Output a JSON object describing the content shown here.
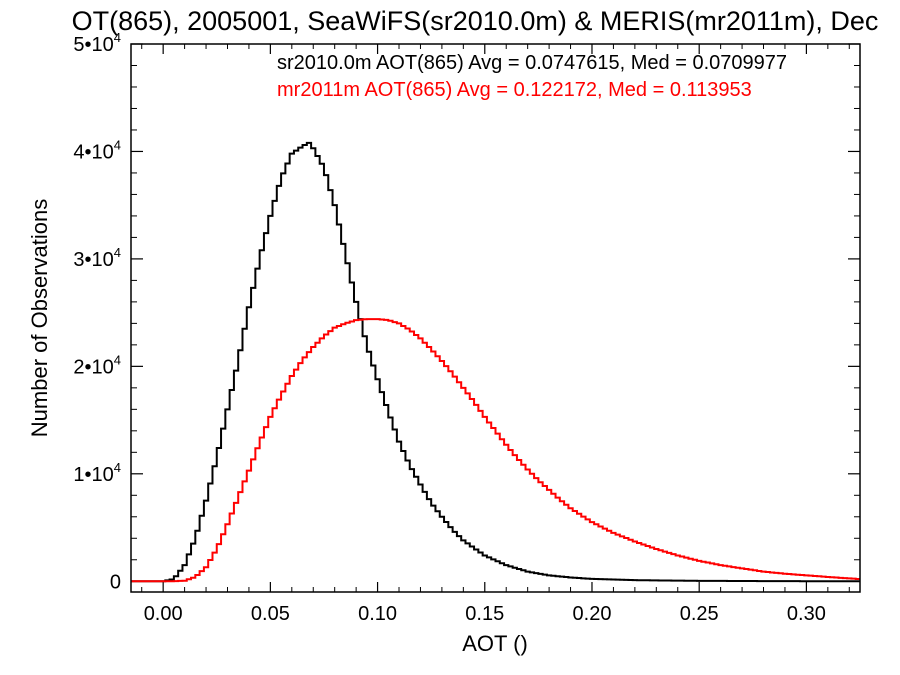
{
  "chart_data": {
    "type": "line",
    "title": "OT(865), 2005001, SeaWiFS(sr2010.0m) & MERIS(mr2011m), Dec",
    "xlabel": "AOT ()",
    "ylabel": "Number of Observations",
    "xlim": [
      -0.015,
      0.325
    ],
    "ylim": [
      -1000,
      50000
    ],
    "x_ticks": [
      {
        "value": 0.0,
        "label": "0.00"
      },
      {
        "value": 0.05,
        "label": "0.05"
      },
      {
        "value": 0.1,
        "label": "0.10"
      },
      {
        "value": 0.15,
        "label": "0.15"
      },
      {
        "value": 0.2,
        "label": "0.20"
      },
      {
        "value": 0.25,
        "label": "0.25"
      },
      {
        "value": 0.3,
        "label": "0.30"
      }
    ],
    "y_ticks": [
      {
        "value": 0,
        "label": "0",
        "exp": ""
      },
      {
        "value": 10000,
        "label": "1•10",
        "exp": "4"
      },
      {
        "value": 20000,
        "label": "2•10",
        "exp": "4"
      },
      {
        "value": 30000,
        "label": "3•10",
        "exp": "4"
      },
      {
        "value": 40000,
        "label": "4•10",
        "exp": "4"
      },
      {
        "value": 50000,
        "label": "5•10",
        "exp": "4"
      }
    ],
    "grid": false,
    "legend_position": "top-right",
    "series": [
      {
        "name": "sr2010.0m",
        "label": "sr2010.0m AOT(865) Avg = 0.0747615, Med = 0.0709977",
        "color": "#000000",
        "x": [
          -0.015,
          0.0,
          0.005,
          0.01,
          0.015,
          0.02,
          0.025,
          0.03,
          0.035,
          0.04,
          0.045,
          0.05,
          0.055,
          0.06,
          0.065,
          0.068,
          0.07,
          0.075,
          0.08,
          0.085,
          0.09,
          0.095,
          0.1,
          0.105,
          0.11,
          0.115,
          0.12,
          0.125,
          0.13,
          0.135,
          0.14,
          0.15,
          0.16,
          0.17,
          0.18,
          0.19,
          0.2,
          0.22,
          0.25,
          0.28,
          0.3,
          0.325
        ],
        "y": [
          0,
          0,
          200,
          1500,
          4000,
          7500,
          11500,
          16000,
          20500,
          25500,
          30000,
          34000,
          37500,
          39800,
          40500,
          40800,
          40300,
          38500,
          35000,
          30500,
          26000,
          22000,
          18800,
          15800,
          13000,
          10800,
          9000,
          7300,
          6000,
          4800,
          3800,
          2400,
          1500,
          900,
          550,
          350,
          220,
          100,
          40,
          15,
          5,
          0
        ]
      },
      {
        "name": "mr2011m",
        "label": "mr2011m AOT(865) Avg = 0.122172, Med = 0.113953",
        "color": "#ff0000",
        "x": [
          -0.015,
          0.005,
          0.01,
          0.015,
          0.02,
          0.025,
          0.03,
          0.035,
          0.04,
          0.045,
          0.05,
          0.055,
          0.06,
          0.065,
          0.07,
          0.075,
          0.08,
          0.085,
          0.09,
          0.095,
          0.1,
          0.105,
          0.11,
          0.115,
          0.12,
          0.125,
          0.13,
          0.135,
          0.14,
          0.145,
          0.15,
          0.155,
          0.16,
          0.165,
          0.17,
          0.175,
          0.18,
          0.185,
          0.19,
          0.2,
          0.21,
          0.22,
          0.23,
          0.24,
          0.25,
          0.26,
          0.27,
          0.28,
          0.29,
          0.3,
          0.31,
          0.325
        ],
        "y": [
          0,
          0,
          50,
          400,
          1300,
          3000,
          5300,
          7800,
          10300,
          12900,
          15300,
          17300,
          19100,
          20600,
          21800,
          22800,
          23600,
          24000,
          24300,
          24400,
          24400,
          24300,
          24000,
          23400,
          22600,
          21600,
          20500,
          19300,
          18000,
          16700,
          15300,
          14000,
          12700,
          11500,
          10400,
          9400,
          8500,
          7600,
          6800,
          5500,
          4500,
          3700,
          3000,
          2400,
          1900,
          1500,
          1200,
          900,
          700,
          550,
          400,
          200
        ]
      }
    ]
  }
}
